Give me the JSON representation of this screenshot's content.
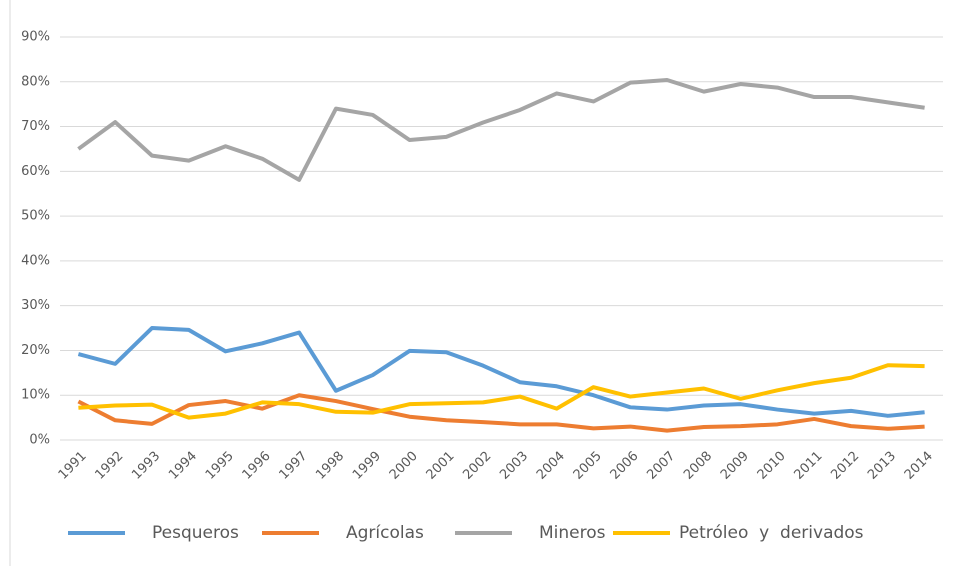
{
  "chart_data": {
    "type": "line",
    "categories": [
      "1991",
      "1992",
      "1993",
      "1994",
      "1995",
      "1996",
      "1997",
      "1998",
      "1999",
      "2000",
      "2001",
      "2002",
      "2003",
      "2004",
      "2005",
      "2006",
      "2007",
      "2008",
      "2009",
      "2010",
      "2011",
      "2012",
      "2013",
      "2014"
    ],
    "series": [
      {
        "name": "Pesqueros",
        "color": "#5b9bd5",
        "values": [
          19.2,
          17,
          25,
          24.6,
          19.8,
          21.6,
          24,
          11,
          14.5,
          19.9,
          19.6,
          16.6,
          12.9,
          12,
          10,
          7.3,
          6.8,
          7.7,
          8,
          6.8,
          5.9,
          6.5,
          5.4,
          6.2
        ]
      },
      {
        "name": "Agrícolas",
        "color": "#ed7d31",
        "values": [
          8.6,
          4.4,
          3.6,
          7.8,
          8.7,
          7,
          10,
          8.7,
          6.9,
          5.2,
          4.4,
          4,
          3.5,
          3.5,
          2.6,
          3,
          2.1,
          2.9,
          3.1,
          3.5,
          4.7,
          3.1,
          2.5,
          3
        ]
      },
      {
        "name": "Mineros",
        "color": "#a5a5a5",
        "values": [
          65,
          71,
          63.5,
          62.4,
          65.6,
          62.8,
          58.1,
          74,
          72.6,
          67,
          67.7,
          70.9,
          73.7,
          77.4,
          75.6,
          79.8,
          80.4,
          77.8,
          79.5,
          78.7,
          76.6,
          76.6,
          75.4,
          74.2
        ]
      },
      {
        "name": "Petróleo  y  derivados",
        "color": "#ffc000",
        "values": [
          7.2,
          7.7,
          7.9,
          5,
          5.9,
          8.4,
          8,
          6.3,
          6.1,
          8,
          8.2,
          8.4,
          9.7,
          7,
          11.8,
          9.7,
          10.6,
          11.5,
          9.2,
          11.1,
          12.7,
          13.9,
          16.7,
          16.5
        ]
      }
    ],
    "ylim": [
      0,
      90
    ],
    "yticks": [
      {
        "value": 0,
        "label": "0%"
      },
      {
        "value": 10,
        "label": "10%"
      },
      {
        "value": 20,
        "label": "20%"
      },
      {
        "value": 30,
        "label": "30%"
      },
      {
        "value": 40,
        "label": "40%"
      },
      {
        "value": 50,
        "label": "50%"
      },
      {
        "value": 60,
        "label": "60%"
      },
      {
        "value": 70,
        "label": "70%"
      },
      {
        "value": 80,
        "label": "80%"
      },
      {
        "value": 90,
        "label": "90%"
      }
    ],
    "grid": true,
    "legend": "bottom"
  }
}
